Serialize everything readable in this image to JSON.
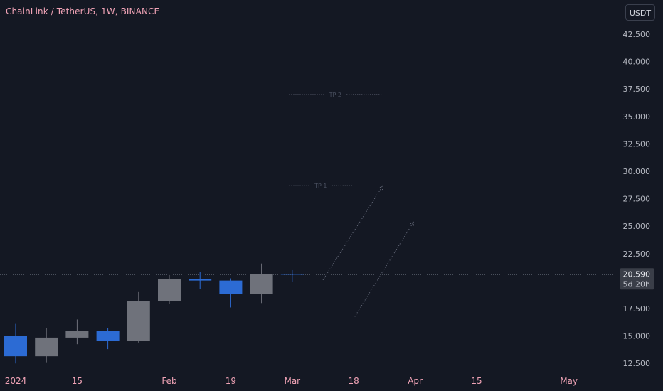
{
  "header": {
    "symbol_title": "ChainLink / TetherUS, 1W, BINANCE",
    "currency_button": "USDT"
  },
  "last_price": {
    "value": "20.590",
    "countdown": "5d 20h"
  },
  "colors": {
    "background": "#141823",
    "up_candle": "#6f727b",
    "down_candle": "#2c6bd4",
    "axis_text": "#b6b9c2",
    "title_text": "#f0a3b6",
    "annotation": "#6b7080"
  },
  "chart_data": {
    "type": "candlestick",
    "title": "ChainLink / TetherUS, 1W, BINANCE",
    "price_axis": {
      "ticks": [
        "42.500",
        "40.000",
        "37.500",
        "35.000",
        "32.500",
        "30.000",
        "27.500",
        "25.000",
        "22.500",
        "17.500",
        "15.000",
        "12.500"
      ],
      "ylim": [
        12.0,
        44.0
      ]
    },
    "time_axis": {
      "ticks": [
        {
          "label": "2024",
          "slot": 0
        },
        {
          "label": "15",
          "slot": 2
        },
        {
          "label": "Feb",
          "slot": 5
        },
        {
          "label": "19",
          "slot": 7
        },
        {
          "label": "Mar",
          "slot": 9
        },
        {
          "label": "18",
          "slot": 11
        },
        {
          "label": "Apr",
          "slot": 13
        },
        {
          "label": "15",
          "slot": 15
        },
        {
          "label": "May",
          "slot": 18
        }
      ]
    },
    "candles": [
      {
        "slot": 0,
        "open": 15.0,
        "high": 16.1,
        "low": 12.5,
        "close": 13.15
      },
      {
        "slot": 1,
        "open": 13.15,
        "high": 15.7,
        "low": 12.6,
        "close": 14.85
      },
      {
        "slot": 2,
        "open": 14.85,
        "high": 16.5,
        "low": 14.25,
        "close": 15.45
      },
      {
        "slot": 3,
        "open": 15.45,
        "high": 15.7,
        "low": 13.8,
        "close": 14.55
      },
      {
        "slot": 4,
        "open": 14.55,
        "high": 19.0,
        "low": 14.4,
        "close": 18.2
      },
      {
        "slot": 5,
        "open": 18.2,
        "high": 20.55,
        "low": 17.9,
        "close": 20.2
      },
      {
        "slot": 6,
        "open": 20.2,
        "high": 20.85,
        "low": 19.3,
        "close": 20.05
      },
      {
        "slot": 7,
        "open": 20.05,
        "high": 20.25,
        "low": 17.6,
        "close": 18.8
      },
      {
        "slot": 8,
        "open": 18.8,
        "high": 21.6,
        "low": 18.0,
        "close": 20.65
      },
      {
        "slot": 9,
        "open": 20.65,
        "high": 21.0,
        "low": 19.9,
        "close": 20.59
      }
    ],
    "last_price": 20.59,
    "annotations": [
      {
        "label": "TP 2",
        "price": 37.0,
        "slot_start": 8.9,
        "slot_end": 11.9
      },
      {
        "label": "TP 1",
        "price": 28.7,
        "slot_start": 8.9,
        "slot_end": 10.95
      }
    ],
    "projections": [
      {
        "from": {
          "slot": 10.0,
          "price": 20.1
        },
        "to": {
          "slot": 11.95,
          "price": 28.7
        }
      },
      {
        "from": {
          "slot": 11.0,
          "price": 16.6
        },
        "to": {
          "slot": 12.95,
          "price": 25.4
        }
      }
    ]
  }
}
